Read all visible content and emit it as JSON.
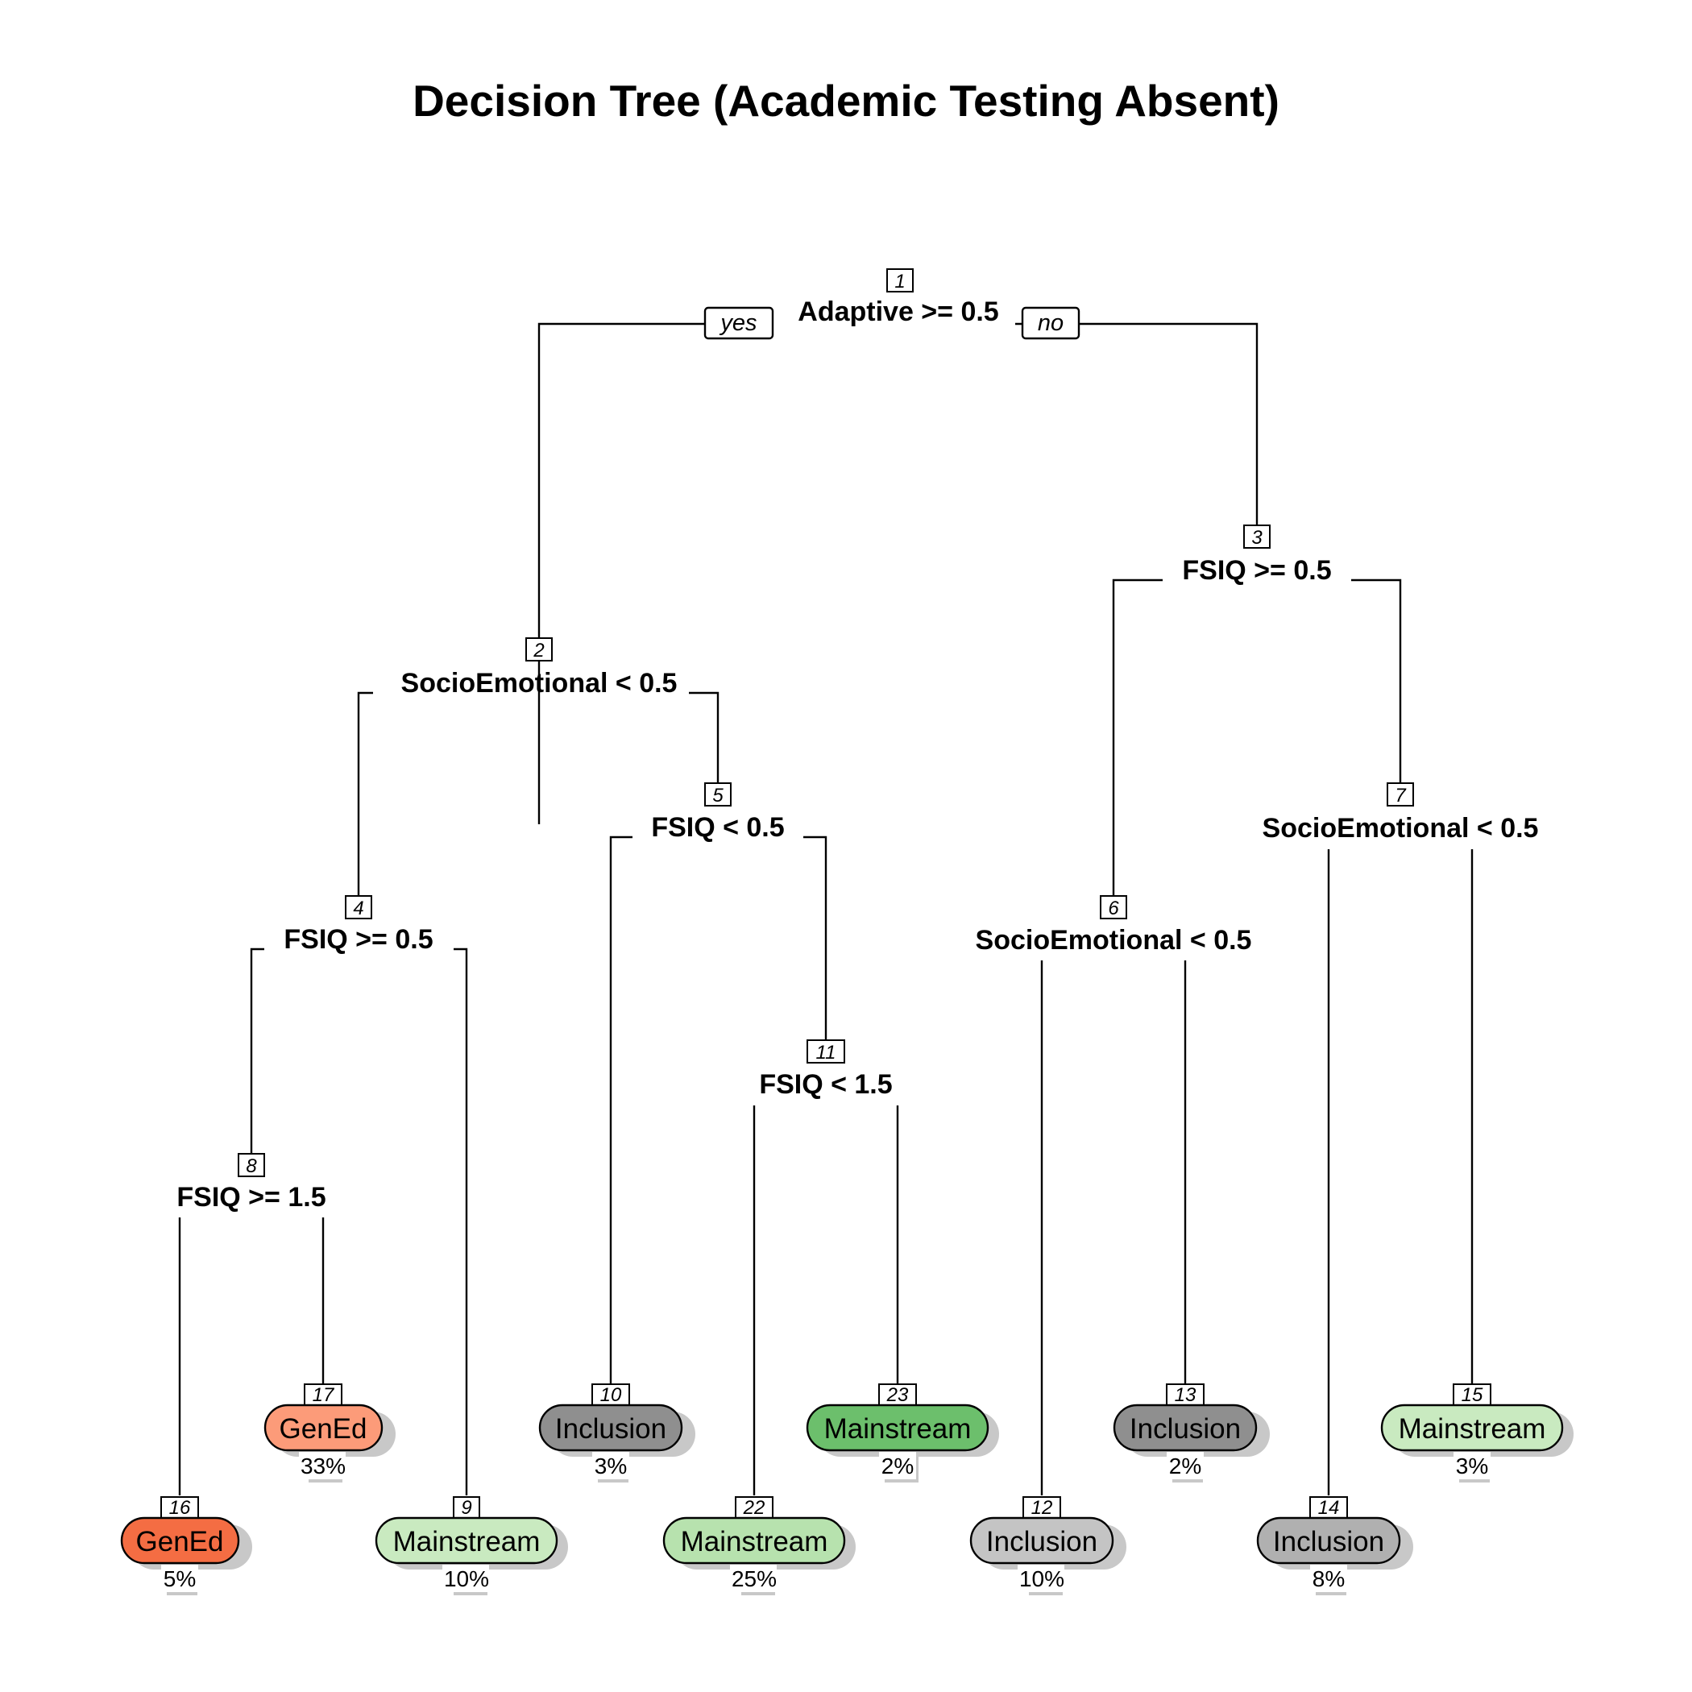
{
  "title": "Decision Tree (Academic Testing Absent)",
  "edge_labels": {
    "yes": "yes",
    "no": "no"
  },
  "splits": [
    {
      "id": "1",
      "rule": "Adaptive >= 0.5"
    },
    {
      "id": "2",
      "rule": "SocioEmotional < 0.5"
    },
    {
      "id": "3",
      "rule": "FSIQ >= 0.5"
    },
    {
      "id": "4",
      "rule": "FSIQ >= 0.5"
    },
    {
      "id": "5",
      "rule": "FSIQ < 0.5"
    },
    {
      "id": "6",
      "rule": "SocioEmotional < 0.5"
    },
    {
      "id": "7",
      "rule": "SocioEmotional < 0.5"
    },
    {
      "id": "8",
      "rule": "FSIQ >= 1.5"
    },
    {
      "id": "11",
      "rule": "FSIQ < 1.5"
    }
  ],
  "leaves": [
    {
      "id": "16",
      "label": "GenEd",
      "percent": "5%",
      "color": "#f46d43"
    },
    {
      "id": "17",
      "label": "GenEd",
      "percent": "33%",
      "color": "#fc9b79"
    },
    {
      "id": "9",
      "label": "Mainstream",
      "percent": "10%",
      "color": "#c9eac0"
    },
    {
      "id": "10",
      "label": "Inclusion",
      "percent": "3%",
      "color": "#8f8f8f"
    },
    {
      "id": "22",
      "label": "Mainstream",
      "percent": "25%",
      "color": "#b7e2ae"
    },
    {
      "id": "23",
      "label": "Mainstream",
      "percent": "2%",
      "color": "#6cbf6c"
    },
    {
      "id": "12",
      "label": "Inclusion",
      "percent": "10%",
      "color": "#c4c4c4"
    },
    {
      "id": "13",
      "label": "Inclusion",
      "percent": "2%",
      "color": "#8f8f8f"
    },
    {
      "id": "14",
      "label": "Inclusion",
      "percent": "8%",
      "color": "#b0b0b0"
    },
    {
      "id": "15",
      "label": "Mainstream",
      "percent": "3%",
      "color": "#c9eac0"
    }
  ]
}
